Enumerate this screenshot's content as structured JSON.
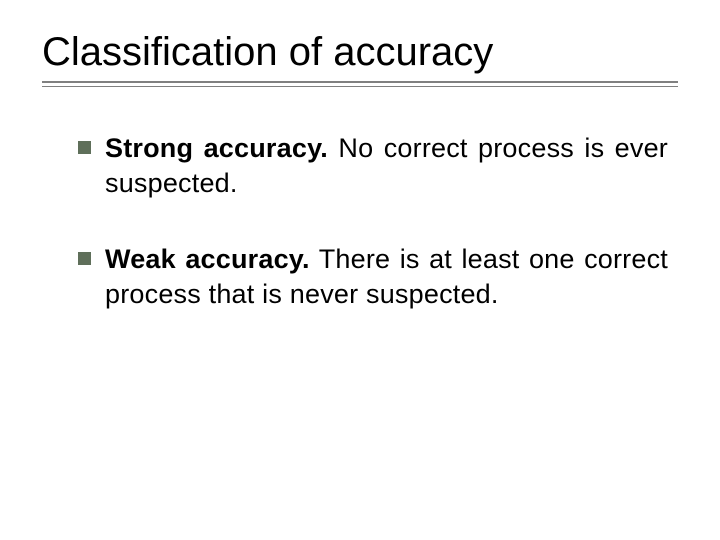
{
  "slide": {
    "title": "Classification of accuracy",
    "title_color": "#000000",
    "title_fontsize": 40,
    "rule_color": "#808080",
    "background_color": "#ffffff",
    "bullet_marker_color": "#5f6f5a",
    "bullet_marker_size": 13,
    "body_fontsize": 27,
    "body_color": "#000000",
    "items": [
      {
        "bold": "Strong accuracy.",
        "rest": " No correct process is ever suspected."
      },
      {
        "bold": "Weak accuracy.",
        "rest": " There is at least one correct process that is never suspected."
      }
    ]
  }
}
